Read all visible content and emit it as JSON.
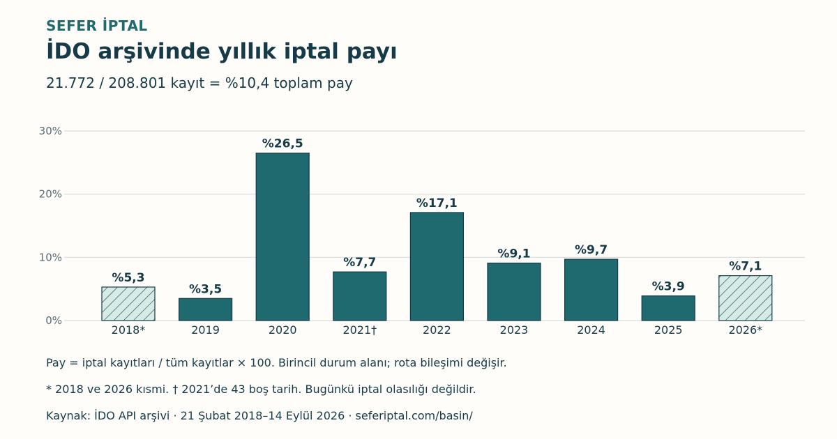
{
  "header": {
    "eyebrow": "SEFER İPTAL",
    "title": "İDO arşivinde yıllık iptal payı",
    "subtitle": "21.772 / 208.801 kayıt = %10,4 toplam pay"
  },
  "notes": {
    "definition": "Pay = iptal kayıtları / tüm kayıtlar × 100. Birincil durum alanı; rota bileşimi değişir.",
    "caveat": "* 2018 ve 2026 kısmi. † 2021’de 43 boş tarih. Bugünkü iptal olasılığı değildir.",
    "source": "Kaynak: İDO API arşivi · 21 Şubat 2018–14 Eylül 2026 · seferiptal.com/basin/"
  },
  "colors": {
    "bar": "#1f6a6e",
    "bar_stroke": "#163a48",
    "partial_fill": "#d6ebe6",
    "grid": "#d8dcdc",
    "axis_text": "#5a6b73",
    "label_text": "#163a48"
  },
  "chart_data": {
    "type": "bar",
    "categories": [
      "2018*",
      "2019",
      "2020",
      "2021†",
      "2022",
      "2023",
      "2024",
      "2025",
      "2026*"
    ],
    "values": [
      5.3,
      3.5,
      26.5,
      7.7,
      17.1,
      9.1,
      9.7,
      3.9,
      7.1
    ],
    "value_labels": [
      "%5,3",
      "%3,5",
      "%26,5",
      "%7,7",
      "%17,1",
      "%9,1",
      "%9,7",
      "%3,9",
      "%7,1"
    ],
    "partial": [
      true,
      false,
      false,
      false,
      false,
      false,
      false,
      false,
      true
    ],
    "yticks": [
      0,
      10,
      20,
      30
    ],
    "ytick_labels": [
      "0%",
      "10%",
      "20%",
      "30%"
    ],
    "ylim": [
      0,
      30
    ],
    "grid": true,
    "xlabel": "",
    "ylabel": ""
  }
}
